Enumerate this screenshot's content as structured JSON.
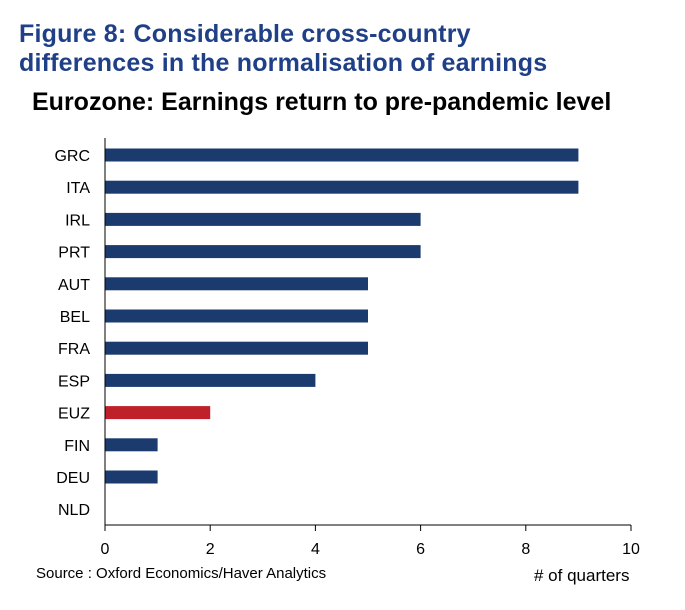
{
  "figure": {
    "title_line1": "Figure 8: Considerable cross-country",
    "title_line2": "differences in the normalisation of earnings"
  },
  "source": "Source : Oxford Economics/Haver Analytics",
  "colors": {
    "series": "#1b3a6e",
    "highlight": "#c0202a",
    "title": "#1f3f87"
  },
  "chart_data": {
    "type": "bar",
    "orientation": "horizontal",
    "title": "Eurozone: Earnings return to pre-pandemic level",
    "categories": [
      "GRC",
      "ITA",
      "IRL",
      "PRT",
      "AUT",
      "BEL",
      "FRA",
      "ESP",
      "EUZ",
      "FIN",
      "DEU",
      "NLD"
    ],
    "values": [
      9,
      9,
      6,
      6,
      5,
      5,
      5,
      4,
      2,
      1,
      1,
      0
    ],
    "highlight": "EUZ",
    "xlabel": "# of quarters",
    "ylabel": "",
    "xlim": [
      0,
      10
    ],
    "xticks": [
      0,
      2,
      4,
      6,
      8,
      10
    ],
    "grid": false
  }
}
